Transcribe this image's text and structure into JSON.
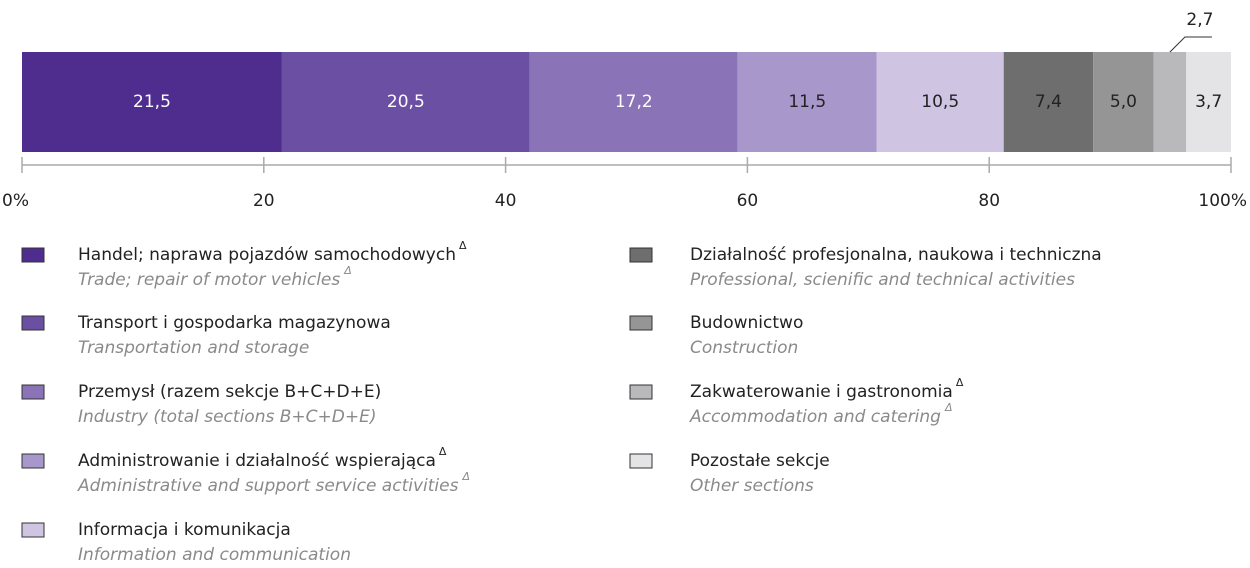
{
  "chart_data": {
    "type": "stacked-bar-100",
    "xlim": [
      0,
      100
    ],
    "xticks": [
      {
        "value": 0,
        "label": "0%"
      },
      20,
      40,
      60,
      80,
      {
        "value": 100,
        "label": "100%"
      }
    ],
    "series": [
      {
        "name": "Handel; naprawa pojazdów samochodowych",
        "name_en": "Trade; repair of motor vehicles",
        "superscript": "Δ",
        "color": "#4f2d8f",
        "label_color": "#ffffff",
        "values": [
          21.5
        ],
        "value_labels": [
          "21,5"
        ]
      },
      {
        "name": "Transport i gospodarka magazynowa",
        "name_en": "Transportation and storage",
        "color": "#6b4fa3",
        "label_color": "#ffffff",
        "values": [
          20.5
        ],
        "value_labels": [
          "20,5"
        ]
      },
      {
        "name": "Przemysł (razem sekcje B+C+D+E)",
        "name_en": "Industry (total sections B+C+D+E)",
        "color": "#8a73b7",
        "label_color": "#ffffff",
        "values": [
          17.2
        ],
        "value_labels": [
          "17,2"
        ]
      },
      {
        "name": "Administrowanie i działalność wspierająca",
        "name_en": "Administrative and support service activities",
        "superscript": "Δ",
        "color": "#a897cb",
        "label_color": "#222222",
        "values": [
          11.5
        ],
        "value_labels": [
          "11,5"
        ]
      },
      {
        "name": "Informacja i komunikacja",
        "name_en": "Information and communication",
        "color": "#cfc5e3",
        "label_color": "#222222",
        "values": [
          10.5
        ],
        "value_labels": [
          "10,5"
        ]
      },
      {
        "name": "Działalność profesjonalna, naukowa i techniczna",
        "name_en": "Professional, scienific and technical activities",
        "color": "#6e6e6e",
        "label_color": "#222222",
        "values": [
          7.4
        ],
        "value_labels": [
          "7,4"
        ]
      },
      {
        "name": "Budownictwo",
        "name_en": "Construction",
        "color": "#959595",
        "label_color": "#222222",
        "values": [
          5.0
        ],
        "value_labels": [
          "5,0"
        ]
      },
      {
        "name": "Zakwaterowanie i gastronomia",
        "name_en": "Accommodation and catering",
        "superscript": "Δ",
        "color": "#b9b9bb",
        "label_color": "#222222",
        "values": [
          2.7
        ],
        "value_labels": [
          "2,7"
        ]
      },
      {
        "name": "Pozostałe sekcje",
        "name_en": "Other sections",
        "color": "#e4e4e6",
        "label_color": "#222222",
        "values": [
          3.7
        ],
        "value_labels": [
          "3,7"
        ]
      }
    ]
  }
}
